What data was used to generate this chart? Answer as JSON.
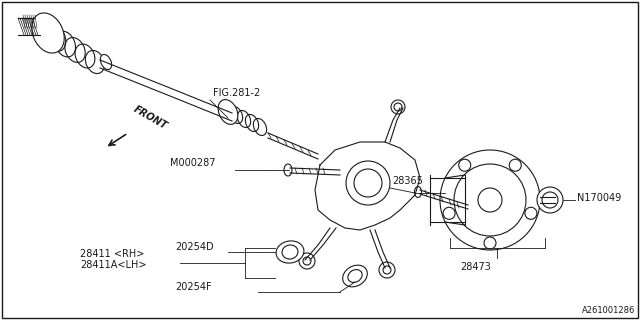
{
  "bg_color": "#ffffff",
  "line_color": "#1a1a1a",
  "labels": {
    "fig": "FIG.281-2",
    "front": "FRONT",
    "m000287": "M000287",
    "28473": "28473",
    "28365": "28365",
    "28411rh": "28411 <RH>",
    "28411lh": "28411A<LH>",
    "20254d": "20254D",
    "20254f": "20254F",
    "n170049": "N170049",
    "diagram_id": "A261001286"
  }
}
